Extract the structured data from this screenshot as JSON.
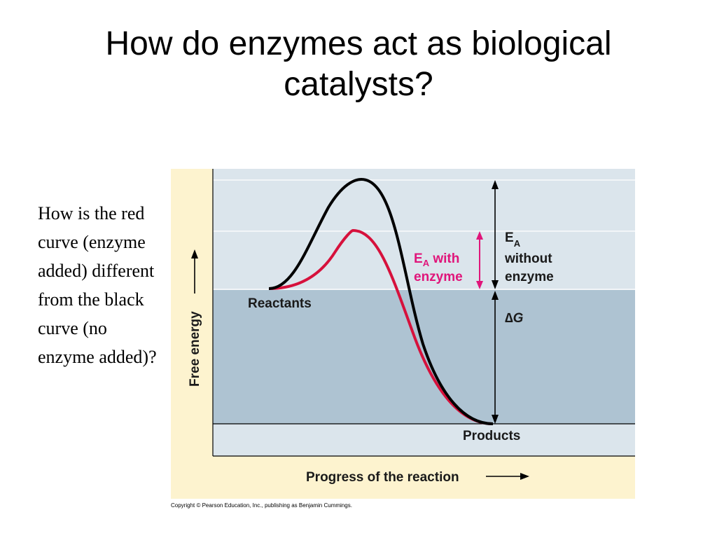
{
  "slide": {
    "title": "How do enzymes act as biological catalysts?",
    "question": "How is the red curve (enzyme added) different from the black curve (no enzyme added)?"
  },
  "figure": {
    "y_axis_label": "Free energy",
    "x_axis_label": "Progress of the reaction",
    "reactants_label": "Reactants",
    "products_label": "Products",
    "ea_with_enzyme": {
      "letter": "E",
      "subscript": "A",
      "suffix": " with",
      "line2": "enzyme"
    },
    "ea_without_enzyme": {
      "letter": "E",
      "subscript": "A",
      "line2": "without",
      "line3": "enzyme"
    },
    "delta_g": {
      "symbol": "∆",
      "letter": "G"
    },
    "copyright": "Copyright © Pearson Education, Inc., publishing as Benjamin Cummings.",
    "colors": {
      "background_panel": "#fdf3cf",
      "plot_light": "#dbe5ec",
      "plot_dark": "#aec3d2",
      "curve_no_enzyme": "#000000",
      "curve_with_enzyme": "#d6113c",
      "arrow_with_enzyme": "#e0157a"
    }
  }
}
